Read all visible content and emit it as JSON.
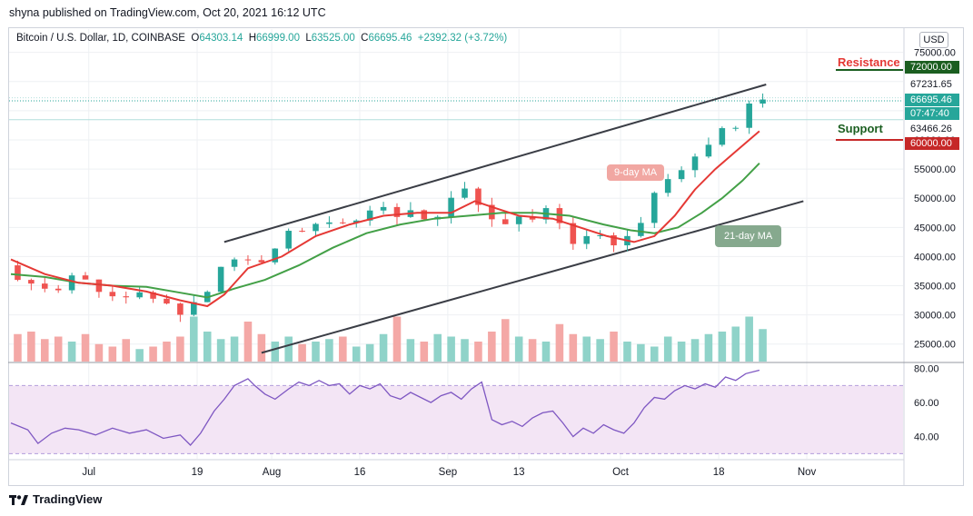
{
  "header": {
    "publisher": "shyna published on TradingView.com, Oct 20, 2021 16:12 UTC"
  },
  "legend": {
    "symbol": "Bitcoin / U.S. Dollar, 1D, COINBASE",
    "open_label": "O",
    "open": "64303.14",
    "high_label": "H",
    "high": "66999.00",
    "low_label": "L",
    "low": "63525.00",
    "close_label": "C",
    "close": "66695.46",
    "change": "+2392.32 (+3.72%)"
  },
  "currency": "USD",
  "annotations": {
    "resistance": "Resistance",
    "support": "Support",
    "ma9": "9-day MA",
    "ma21": "21-day MA"
  },
  "price_tags": {
    "resistance": "72000.00",
    "high": "67231.65",
    "current": "66695.46",
    "countdown": "07:47:40",
    "low": "63466.26",
    "support": "60000.00"
  },
  "footer": {
    "brand": "TradingView"
  },
  "colors": {
    "up": "#26a69a",
    "down": "#ef5350",
    "ma9": "#e53935",
    "ma21": "#43a047",
    "rsi_line": "#7e57c2",
    "rsi_band": "#f3e5f5",
    "vol_up": "#8fd3c9",
    "vol_down": "#f4a8a6"
  },
  "chart_data": [
    {
      "type": "candlestick",
      "x_tick_labels": [
        "Jul",
        "19",
        "Aug",
        "16",
        "Sep",
        "13",
        "Oct",
        "18",
        "Nov"
      ],
      "y_tick_labels": [
        "75000.00",
        "70000.00",
        "65000.00",
        "60000.00",
        "55000.00",
        "50000.00",
        "45000.00",
        "40000.00",
        "35000.00",
        "30000.00",
        "25000.00"
      ],
      "ylim": [
        22000,
        79000
      ],
      "close_path": [
        [
          0,
          38500
        ],
        [
          5,
          36500
        ],
        [
          10,
          35000
        ],
        [
          15,
          34500
        ],
        [
          20,
          36000
        ],
        [
          25,
          35500
        ],
        [
          30,
          34000
        ],
        [
          35,
          33500
        ],
        [
          40,
          33000
        ],
        [
          45,
          32500
        ],
        [
          50,
          31000
        ],
        [
          53,
          30500
        ],
        [
          57,
          32000
        ],
        [
          60,
          34000
        ],
        [
          63,
          38000
        ],
        [
          66,
          40500
        ],
        [
          70,
          40000
        ],
        [
          75,
          39000
        ],
        [
          80,
          42000
        ],
        [
          85,
          44500
        ],
        [
          90,
          45500
        ],
        [
          95,
          46000
        ],
        [
          100,
          45000
        ],
        [
          105,
          47000
        ],
        [
          110,
          48500
        ],
        [
          115,
          47500
        ],
        [
          120,
          48000
        ],
        [
          125,
          46500
        ],
        [
          130,
          48500
        ],
        [
          135,
          50500
        ],
        [
          138,
          52500
        ],
        [
          141,
          48000
        ],
        [
          145,
          46000
        ],
        [
          150,
          46500
        ],
        [
          155,
          47000
        ],
        [
          160,
          47500
        ],
        [
          163,
          46000
        ],
        [
          166,
          43000
        ],
        [
          170,
          42500
        ],
        [
          173,
          44000
        ],
        [
          176,
          43000
        ],
        [
          180,
          42500
        ],
        [
          183,
          42000
        ],
        [
          186,
          44000
        ],
        [
          189,
          48000
        ],
        [
          192,
          51000
        ],
        [
          195,
          52500
        ],
        [
          198,
          54500
        ],
        [
          201,
          55500
        ],
        [
          204,
          57000
        ],
        [
          207,
          58000
        ],
        [
          210,
          59500
        ],
        [
          213,
          62000
        ],
        [
          216,
          61500
        ],
        [
          219,
          64000
        ],
        [
          221,
          66695
        ]
      ],
      "ma9_path": [
        [
          0,
          39500
        ],
        [
          10,
          37000
        ],
        [
          20,
          35500
        ],
        [
          30,
          35000
        ],
        [
          40,
          34000
        ],
        [
          50,
          32500
        ],
        [
          58,
          31500
        ],
        [
          63,
          33500
        ],
        [
          70,
          38000
        ],
        [
          80,
          40000
        ],
        [
          90,
          43500
        ],
        [
          100,
          45500
        ],
        [
          110,
          47000
        ],
        [
          120,
          47500
        ],
        [
          130,
          47500
        ],
        [
          137,
          49500
        ],
        [
          142,
          48500
        ],
        [
          150,
          47000
        ],
        [
          160,
          46500
        ],
        [
          168,
          45000
        ],
        [
          176,
          43500
        ],
        [
          184,
          42500
        ],
        [
          190,
          43500
        ],
        [
          196,
          47000
        ],
        [
          202,
          51500
        ],
        [
          208,
          55000
        ],
        [
          214,
          58000
        ],
        [
          221,
          61500
        ]
      ],
      "ma21_path": [
        [
          0,
          37000
        ],
        [
          10,
          36500
        ],
        [
          20,
          35500
        ],
        [
          30,
          35000
        ],
        [
          40,
          34800
        ],
        [
          50,
          33800
        ],
        [
          58,
          33000
        ],
        [
          66,
          34500
        ],
        [
          75,
          36000
        ],
        [
          85,
          38500
        ],
        [
          95,
          41500
        ],
        [
          105,
          44000
        ],
        [
          115,
          45500
        ],
        [
          125,
          46500
        ],
        [
          135,
          47000
        ],
        [
          145,
          47500
        ],
        [
          155,
          47500
        ],
        [
          165,
          47000
        ],
        [
          175,
          45500
        ],
        [
          183,
          44500
        ],
        [
          190,
          44000
        ],
        [
          197,
          45000
        ],
        [
          204,
          47500
        ],
        [
          210,
          50000
        ],
        [
          216,
          53000
        ],
        [
          221,
          56000
        ]
      ],
      "trendlines": [
        {
          "name": "upper-channel",
          "from": [
            63,
            42500
          ],
          "to": [
            223,
            69500
          ]
        },
        {
          "name": "lower-channel",
          "from": [
            74,
            23500
          ],
          "to": [
            234,
            49500
          ]
        }
      ],
      "levels": [
        {
          "name": "resistance",
          "value": 72000
        },
        {
          "name": "support",
          "value": 60000
        }
      ],
      "current_price": 66695.46,
      "volume_heights": [
        0.55,
        0.6,
        0.45,
        0.5,
        0.4,
        0.55,
        0.35,
        0.3,
        0.45,
        0.25,
        0.3,
        0.4,
        0.5,
        0.9,
        0.6,
        0.45,
        0.5,
        0.8,
        0.55,
        0.4,
        0.5,
        0.35,
        0.4,
        0.45,
        0.5,
        0.3,
        0.35,
        0.55,
        0.9,
        0.45,
        0.4,
        0.55,
        0.5,
        0.45,
        0.4,
        0.6,
        0.85,
        0.5,
        0.45,
        0.4,
        0.75,
        0.55,
        0.5,
        0.45,
        0.6,
        0.4,
        0.35,
        0.3,
        0.5,
        0.4,
        0.45,
        0.55,
        0.6,
        0.7,
        0.9,
        0.65,
        0.55
      ]
    },
    {
      "type": "line",
      "name": "RSI",
      "y_tick_labels": [
        "80.00",
        "60.00",
        "40.00"
      ],
      "ylim": [
        27,
        83
      ],
      "band": [
        30,
        70
      ],
      "values": [
        [
          0,
          48
        ],
        [
          5,
          44
        ],
        [
          8,
          36
        ],
        [
          12,
          42
        ],
        [
          16,
          45
        ],
        [
          20,
          44
        ],
        [
          25,
          41
        ],
        [
          30,
          45
        ],
        [
          35,
          42
        ],
        [
          40,
          44
        ],
        [
          45,
          39
        ],
        [
          50,
          41
        ],
        [
          53,
          35
        ],
        [
          56,
          42
        ],
        [
          60,
          55
        ],
        [
          63,
          62
        ],
        [
          66,
          70
        ],
        [
          70,
          74
        ],
        [
          72,
          70
        ],
        [
          75,
          65
        ],
        [
          78,
          62
        ],
        [
          82,
          68
        ],
        [
          85,
          72
        ],
        [
          88,
          70
        ],
        [
          91,
          73
        ],
        [
          94,
          70
        ],
        [
          97,
          71
        ],
        [
          100,
          65
        ],
        [
          103,
          70
        ],
        [
          106,
          68
        ],
        [
          109,
          71
        ],
        [
          112,
          64
        ],
        [
          115,
          62
        ],
        [
          118,
          66
        ],
        [
          121,
          63
        ],
        [
          124,
          60
        ],
        [
          127,
          64
        ],
        [
          130,
          66
        ],
        [
          133,
          62
        ],
        [
          136,
          68
        ],
        [
          139,
          72
        ],
        [
          142,
          50
        ],
        [
          145,
          47
        ],
        [
          148,
          49
        ],
        [
          151,
          46
        ],
        [
          154,
          51
        ],
        [
          157,
          54
        ],
        [
          160,
          55
        ],
        [
          163,
          48
        ],
        [
          166,
          40
        ],
        [
          169,
          45
        ],
        [
          172,
          42
        ],
        [
          175,
          47
        ],
        [
          178,
          44
        ],
        [
          181,
          42
        ],
        [
          184,
          48
        ],
        [
          187,
          57
        ],
        [
          190,
          63
        ],
        [
          193,
          62
        ],
        [
          196,
          67
        ],
        [
          199,
          70
        ],
        [
          202,
          68
        ],
        [
          205,
          71
        ],
        [
          208,
          69
        ],
        [
          211,
          75
        ],
        [
          214,
          73
        ],
        [
          217,
          77
        ],
        [
          221,
          79
        ]
      ]
    }
  ]
}
